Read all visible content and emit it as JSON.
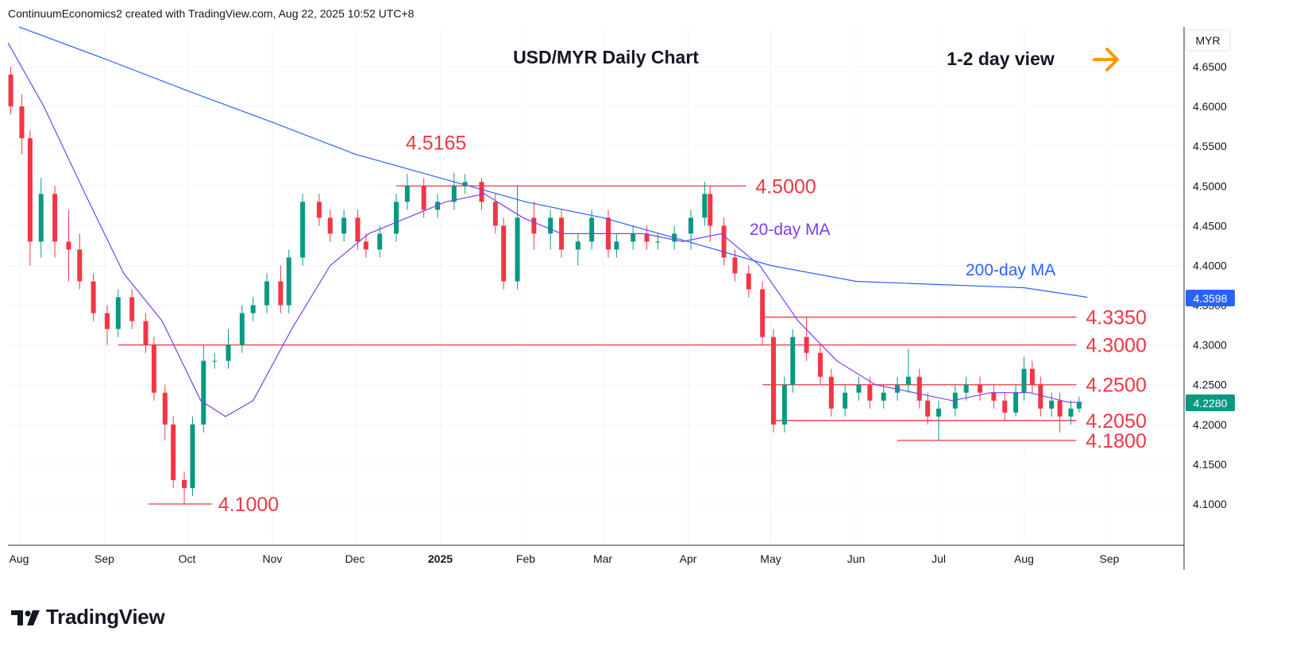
{
  "attribution": "ContinuumEconomics2 created with TradingView.com, Aug 22, 2025 10:52 UTC+8",
  "brand": {
    "name": "TradingView"
  },
  "colors": {
    "up": "#089981",
    "down": "#f23645",
    "ma20": "#7b3ff2",
    "ma200": "#2962ff",
    "level": "#f23645",
    "arrow": "#ff9800",
    "last_price_bg": "#089981",
    "ma200_label_bg": "#2962ff"
  },
  "chart_data": {
    "type": "candlestick",
    "title": "USD/MYR Daily Chart",
    "view_label": "1-2 day view",
    "view_icon": "arrow-right-icon",
    "currency": "MYR",
    "ylim": [
      4.05,
      4.7
    ],
    "y_ticks": [
      "4.1000",
      "4.1500",
      "4.2000",
      "4.2500",
      "4.3000",
      "4.3500",
      "4.4000",
      "4.4500",
      "4.5000",
      "4.5500",
      "4.6000",
      "4.6500"
    ],
    "x_ticks": [
      {
        "label": "Aug",
        "date": "2024-08-01"
      },
      {
        "label": "Sep",
        "date": "2024-09-01"
      },
      {
        "label": "Oct",
        "date": "2024-10-01"
      },
      {
        "label": "Nov",
        "date": "2024-11-01"
      },
      {
        "label": "Dec",
        "date": "2024-12-01"
      },
      {
        "label": "2025",
        "date": "2025-01-01",
        "bold": true
      },
      {
        "label": "Feb",
        "date": "2025-02-01"
      },
      {
        "label": "Mar",
        "date": "2025-03-01"
      },
      {
        "label": "Apr",
        "date": "2025-04-01"
      },
      {
        "label": "May",
        "date": "2025-05-01"
      },
      {
        "label": "Jun",
        "date": "2025-06-01"
      },
      {
        "label": "Jul",
        "date": "2025-07-01"
      },
      {
        "label": "Aug",
        "date": "2025-08-01"
      },
      {
        "label": "Sep",
        "date": "2025-09-01"
      }
    ],
    "last_price": "4.2280",
    "ma200_value": "4.3598",
    "candles": [
      [
        "2024-07-29",
        4.64,
        4.65,
        4.59,
        4.6
      ],
      [
        "2024-08-02",
        4.6,
        4.615,
        4.54,
        4.56
      ],
      [
        "2024-08-05",
        4.56,
        4.57,
        4.4,
        4.43
      ],
      [
        "2024-08-09",
        4.43,
        4.51,
        4.41,
        4.49
      ],
      [
        "2024-08-14",
        4.49,
        4.5,
        4.41,
        4.43
      ],
      [
        "2024-08-19",
        4.43,
        4.47,
        4.38,
        4.42
      ],
      [
        "2024-08-23",
        4.42,
        4.44,
        4.37,
        4.38
      ],
      [
        "2024-08-28",
        4.38,
        4.39,
        4.33,
        4.34
      ],
      [
        "2024-09-02",
        4.34,
        4.35,
        4.3,
        4.32
      ],
      [
        "2024-09-06",
        4.32,
        4.37,
        4.31,
        4.36
      ],
      [
        "2024-09-11",
        4.36,
        4.37,
        4.32,
        4.33
      ],
      [
        "2024-09-16",
        4.33,
        4.34,
        4.29,
        4.3
      ],
      [
        "2024-09-19",
        4.3,
        4.31,
        4.23,
        4.24
      ],
      [
        "2024-09-23",
        4.24,
        4.25,
        4.18,
        4.2
      ],
      [
        "2024-09-26",
        4.2,
        4.21,
        4.12,
        4.13
      ],
      [
        "2024-09-30",
        4.13,
        4.14,
        4.1,
        4.12
      ],
      [
        "2024-10-03",
        4.12,
        4.21,
        4.11,
        4.2
      ],
      [
        "2024-10-07",
        4.2,
        4.3,
        4.19,
        4.28
      ],
      [
        "2024-10-11",
        4.28,
        4.29,
        4.27,
        4.28
      ],
      [
        "2024-10-16",
        4.28,
        4.32,
        4.27,
        4.3
      ],
      [
        "2024-10-21",
        4.3,
        4.35,
        4.29,
        4.34
      ],
      [
        "2024-10-25",
        4.34,
        4.36,
        4.33,
        4.35
      ],
      [
        "2024-10-30",
        4.35,
        4.39,
        4.34,
        4.38
      ],
      [
        "2024-11-04",
        4.38,
        4.4,
        4.34,
        4.35
      ],
      [
        "2024-11-07",
        4.35,
        4.42,
        4.34,
        4.41
      ],
      [
        "2024-11-12",
        4.41,
        4.49,
        4.4,
        4.48
      ],
      [
        "2024-11-18",
        4.48,
        4.49,
        4.45,
        4.46
      ],
      [
        "2024-11-22",
        4.46,
        4.47,
        4.43,
        4.44
      ],
      [
        "2024-11-27",
        4.44,
        4.47,
        4.43,
        4.46
      ],
      [
        "2024-12-02",
        4.46,
        4.47,
        4.42,
        4.43
      ],
      [
        "2024-12-05",
        4.43,
        4.44,
        4.41,
        4.42
      ],
      [
        "2024-12-10",
        4.42,
        4.45,
        4.41,
        4.44
      ],
      [
        "2024-12-16",
        4.44,
        4.49,
        4.43,
        4.48
      ],
      [
        "2024-12-20",
        4.48,
        4.515,
        4.47,
        4.5
      ],
      [
        "2024-12-26",
        4.5,
        4.51,
        4.46,
        4.47
      ],
      [
        "2024-12-31",
        4.47,
        4.49,
        4.46,
        4.48
      ],
      [
        "2025-01-06",
        4.48,
        4.5165,
        4.47,
        4.5
      ],
      [
        "2025-01-10",
        4.5,
        4.515,
        4.49,
        4.505
      ],
      [
        "2025-01-16",
        4.505,
        4.51,
        4.47,
        4.48
      ],
      [
        "2025-01-21",
        4.48,
        4.49,
        4.44,
        4.45
      ],
      [
        "2025-01-24",
        4.45,
        4.46,
        4.37,
        4.38
      ],
      [
        "2025-01-29",
        4.38,
        4.5,
        4.37,
        4.46
      ],
      [
        "2025-02-04",
        4.46,
        4.48,
        4.42,
        4.44
      ],
      [
        "2025-02-10",
        4.44,
        4.47,
        4.42,
        4.46
      ],
      [
        "2025-02-14",
        4.46,
        4.47,
        4.41,
        4.42
      ],
      [
        "2025-02-20",
        4.42,
        4.44,
        4.4,
        4.43
      ],
      [
        "2025-02-25",
        4.43,
        4.47,
        4.42,
        4.46
      ],
      [
        "2025-03-03",
        4.46,
        4.47,
        4.41,
        4.42
      ],
      [
        "2025-03-06",
        4.42,
        4.44,
        4.41,
        4.43
      ],
      [
        "2025-03-12",
        4.43,
        4.45,
        4.42,
        4.44
      ],
      [
        "2025-03-17",
        4.44,
        4.45,
        4.42,
        4.43
      ],
      [
        "2025-03-21",
        4.43,
        4.44,
        4.42,
        4.43
      ],
      [
        "2025-03-27",
        4.43,
        4.45,
        4.42,
        4.44
      ],
      [
        "2025-04-02",
        4.44,
        4.47,
        4.42,
        4.46
      ],
      [
        "2025-04-07",
        4.46,
        4.505,
        4.45,
        4.49
      ],
      [
        "2025-04-09",
        4.49,
        4.5,
        4.43,
        4.45
      ],
      [
        "2025-04-14",
        4.45,
        4.46,
        4.4,
        4.41
      ],
      [
        "2025-04-18",
        4.41,
        4.42,
        4.38,
        4.39
      ],
      [
        "2025-04-23",
        4.39,
        4.4,
        4.36,
        4.37
      ],
      [
        "2025-04-28",
        4.37,
        4.38,
        4.3,
        4.31
      ],
      [
        "2025-05-02",
        4.31,
        4.32,
        4.19,
        4.2
      ],
      [
        "2025-05-06",
        4.2,
        4.26,
        4.19,
        4.25
      ],
      [
        "2025-05-09",
        4.25,
        4.32,
        4.24,
        4.31
      ],
      [
        "2025-05-14",
        4.31,
        4.335,
        4.28,
        4.29
      ],
      [
        "2025-05-19",
        4.29,
        4.3,
        4.25,
        4.26
      ],
      [
        "2025-05-23",
        4.26,
        4.27,
        4.21,
        4.22
      ],
      [
        "2025-05-28",
        4.22,
        4.25,
        4.21,
        4.24
      ],
      [
        "2025-06-02",
        4.24,
        4.26,
        4.23,
        4.25
      ],
      [
        "2025-06-06",
        4.25,
        4.26,
        4.22,
        4.23
      ],
      [
        "2025-06-11",
        4.23,
        4.25,
        4.22,
        4.24
      ],
      [
        "2025-06-16",
        4.24,
        4.26,
        4.23,
        4.25
      ],
      [
        "2025-06-20",
        4.25,
        4.295,
        4.24,
        4.26
      ],
      [
        "2025-06-24",
        4.26,
        4.27,
        4.22,
        4.23
      ],
      [
        "2025-06-27",
        4.23,
        4.24,
        4.2,
        4.21
      ],
      [
        "2025-07-01",
        4.21,
        4.23,
        4.18,
        4.22
      ],
      [
        "2025-07-07",
        4.22,
        4.25,
        4.21,
        4.24
      ],
      [
        "2025-07-11",
        4.24,
        4.26,
        4.23,
        4.25
      ],
      [
        "2025-07-16",
        4.25,
        4.26,
        4.23,
        4.24
      ],
      [
        "2025-07-21",
        4.24,
        4.25,
        4.22,
        4.23
      ],
      [
        "2025-07-25",
        4.23,
        4.24,
        4.205,
        4.215
      ],
      [
        "2025-07-29",
        4.215,
        4.25,
        4.21,
        4.24
      ],
      [
        "2025-08-01",
        4.24,
        4.285,
        4.23,
        4.27
      ],
      [
        "2025-08-04",
        4.27,
        4.28,
        4.24,
        4.25
      ],
      [
        "2025-08-07",
        4.25,
        4.26,
        4.21,
        4.22
      ],
      [
        "2025-08-11",
        4.22,
        4.24,
        4.21,
        4.23
      ],
      [
        "2025-08-14",
        4.23,
        4.24,
        4.19,
        4.21
      ],
      [
        "2025-08-18",
        4.21,
        4.23,
        4.2,
        4.22
      ],
      [
        "2025-08-21",
        4.22,
        4.235,
        4.215,
        4.228
      ]
    ],
    "ma20": [
      [
        "2024-07-28",
        4.68
      ],
      [
        "2024-08-10",
        4.6
      ],
      [
        "2024-08-25",
        4.49
      ],
      [
        "2024-09-08",
        4.39
      ],
      [
        "2024-09-22",
        4.33
      ],
      [
        "2024-10-06",
        4.23
      ],
      [
        "2024-10-15",
        4.21
      ],
      [
        "2024-10-25",
        4.23
      ],
      [
        "2024-11-08",
        4.32
      ],
      [
        "2024-11-22",
        4.4
      ],
      [
        "2024-12-06",
        4.44
      ],
      [
        "2024-12-20",
        4.46
      ],
      [
        "2025-01-03",
        4.48
      ],
      [
        "2025-01-17",
        4.49
      ],
      [
        "2025-01-31",
        4.46
      ],
      [
        "2025-02-14",
        4.44
      ],
      [
        "2025-03-02",
        4.44
      ],
      [
        "2025-03-16",
        4.44
      ],
      [
        "2025-03-30",
        4.43
      ],
      [
        "2025-04-13",
        4.44
      ],
      [
        "2025-04-27",
        4.4
      ],
      [
        "2025-05-11",
        4.33
      ],
      [
        "2025-05-25",
        4.28
      ],
      [
        "2025-06-08",
        4.25
      ],
      [
        "2025-06-22",
        4.24
      ],
      [
        "2025-07-06",
        4.23
      ],
      [
        "2025-07-20",
        4.24
      ],
      [
        "2025-08-03",
        4.24
      ],
      [
        "2025-08-17",
        4.228
      ],
      [
        "2025-08-22",
        4.228
      ]
    ],
    "ma200": [
      [
        "2024-08-01",
        4.7
      ],
      [
        "2024-09-01",
        4.66
      ],
      [
        "2024-10-01",
        4.62
      ],
      [
        "2024-11-01",
        4.58
      ],
      [
        "2024-12-01",
        4.54
      ],
      [
        "2025-01-01",
        4.51
      ],
      [
        "2025-02-01",
        4.48
      ],
      [
        "2025-03-01",
        4.46
      ],
      [
        "2025-04-01",
        4.43
      ],
      [
        "2025-05-01",
        4.4
      ],
      [
        "2025-06-01",
        4.38
      ],
      [
        "2025-07-01",
        4.376
      ],
      [
        "2025-08-01",
        4.372
      ],
      [
        "2025-08-24",
        4.36
      ]
    ],
    "levels": [
      {
        "label": "4.5165",
        "value": 4.5165,
        "line": false,
        "label_date": "2024-12-20"
      },
      {
        "label": "4.5000",
        "value": 4.5,
        "from": "2024-12-16",
        "to": "2025-04-22"
      },
      {
        "label": "4.3350",
        "value": 4.335,
        "from": "2025-04-28",
        "to": "2025-08-20"
      },
      {
        "label": "4.3000",
        "value": 4.3,
        "from": "2024-09-06",
        "to": "2025-08-20"
      },
      {
        "label": "4.2500",
        "value": 4.25,
        "from": "2025-04-28",
        "to": "2025-08-20"
      },
      {
        "label": "4.2050",
        "value": 4.205,
        "from": "2025-05-02",
        "to": "2025-08-20"
      },
      {
        "label": "4.1800",
        "value": 4.18,
        "from": "2025-06-16",
        "to": "2025-08-20"
      },
      {
        "label": "4.1000",
        "value": 4.1,
        "from": "2024-09-17",
        "to": "2024-10-10"
      }
    ],
    "annotations": [
      {
        "text": "20-day MA",
        "kind": "ma20"
      },
      {
        "text": "200-day MA",
        "kind": "ma200"
      }
    ]
  }
}
